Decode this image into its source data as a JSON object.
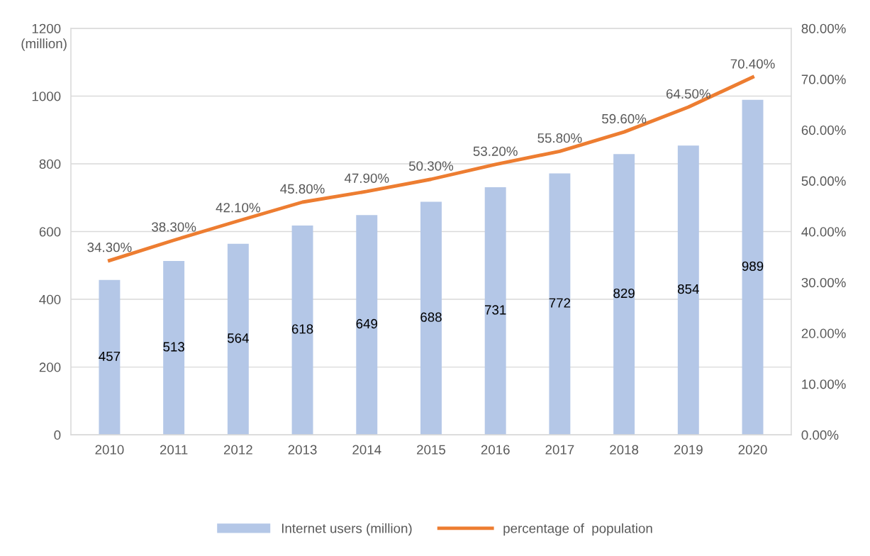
{
  "chart_data": {
    "type": "bar",
    "categories": [
      "2010",
      "2011",
      "2012",
      "2013",
      "2014",
      "2015",
      "2016",
      "2017",
      "2018",
      "2019",
      "2020"
    ],
    "ylabel": "(million)",
    "ylim": [
      0,
      1200
    ],
    "yticks": [
      0,
      200,
      400,
      600,
      800,
      1000,
      1200
    ],
    "y2lim": [
      0,
      80
    ],
    "y2ticks": [
      {
        "value": 0,
        "label": "0.00%"
      },
      {
        "value": 10,
        "label": "10.00%"
      },
      {
        "value": 20,
        "label": "20.00%"
      },
      {
        "value": 30,
        "label": "30.00%"
      },
      {
        "value": 40,
        "label": "40.00%"
      },
      {
        "value": 50,
        "label": "50.00%"
      },
      {
        "value": 60,
        "label": "60.00%"
      },
      {
        "value": 70,
        "label": "70.00%"
      },
      {
        "value": 80,
        "label": "80.00%"
      }
    ],
    "grid": "y",
    "legend": "bottom",
    "series": [
      {
        "name": "Internet users (million)",
        "color": "#b4c7e7",
        "values": [
          457,
          513,
          564,
          618,
          649,
          688,
          731,
          772,
          829,
          854,
          989
        ],
        "value_labels": [
          "457",
          "513",
          "564",
          "618",
          "649",
          "688",
          "731",
          "772",
          "829",
          "854",
          "989"
        ]
      },
      {
        "name": "percentage of  population",
        "type": "line",
        "axis": "y2",
        "color": "#ed7d31",
        "line_style": "solid",
        "marker": "none",
        "values": [
          34.3,
          38.3,
          42.1,
          45.8,
          47.9,
          50.3,
          53.2,
          55.8,
          59.6,
          64.5,
          70.4
        ],
        "value_labels": [
          "34.30%",
          "38.30%",
          "42.10%",
          "45.80%",
          "47.90%",
          "50.30%",
          "53.20%",
          "55.80%",
          "59.60%",
          "64.50%",
          "70.40%"
        ]
      }
    ]
  }
}
